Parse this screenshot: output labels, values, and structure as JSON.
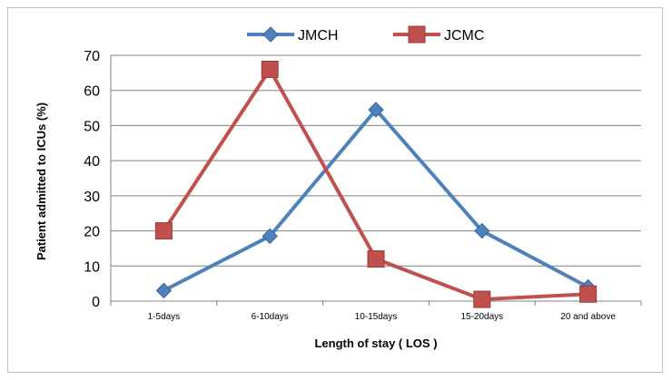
{
  "chart_data": {
    "type": "line",
    "categories": [
      "1-5days",
      "6-10days",
      "10-15days",
      "15-20days",
      "20 and above"
    ],
    "series": [
      {
        "name": "JMCH",
        "color": "#4F81BD",
        "marker": "diamond",
        "values": [
          3,
          18.5,
          54.5,
          20,
          4
        ]
      },
      {
        "name": "JCMC",
        "color": "#C0504D",
        "marker": "square",
        "values": [
          20,
          66,
          12,
          0.5,
          2
        ]
      }
    ],
    "xlabel": "Length of stay ( LOS )",
    "ylabel": "Patient admitted to ICUs (%)",
    "ylim": [
      0,
      70
    ],
    "yticks": [
      0,
      10,
      20,
      30,
      40,
      50,
      60,
      70
    ],
    "grid": true,
    "legend_position": "top"
  }
}
